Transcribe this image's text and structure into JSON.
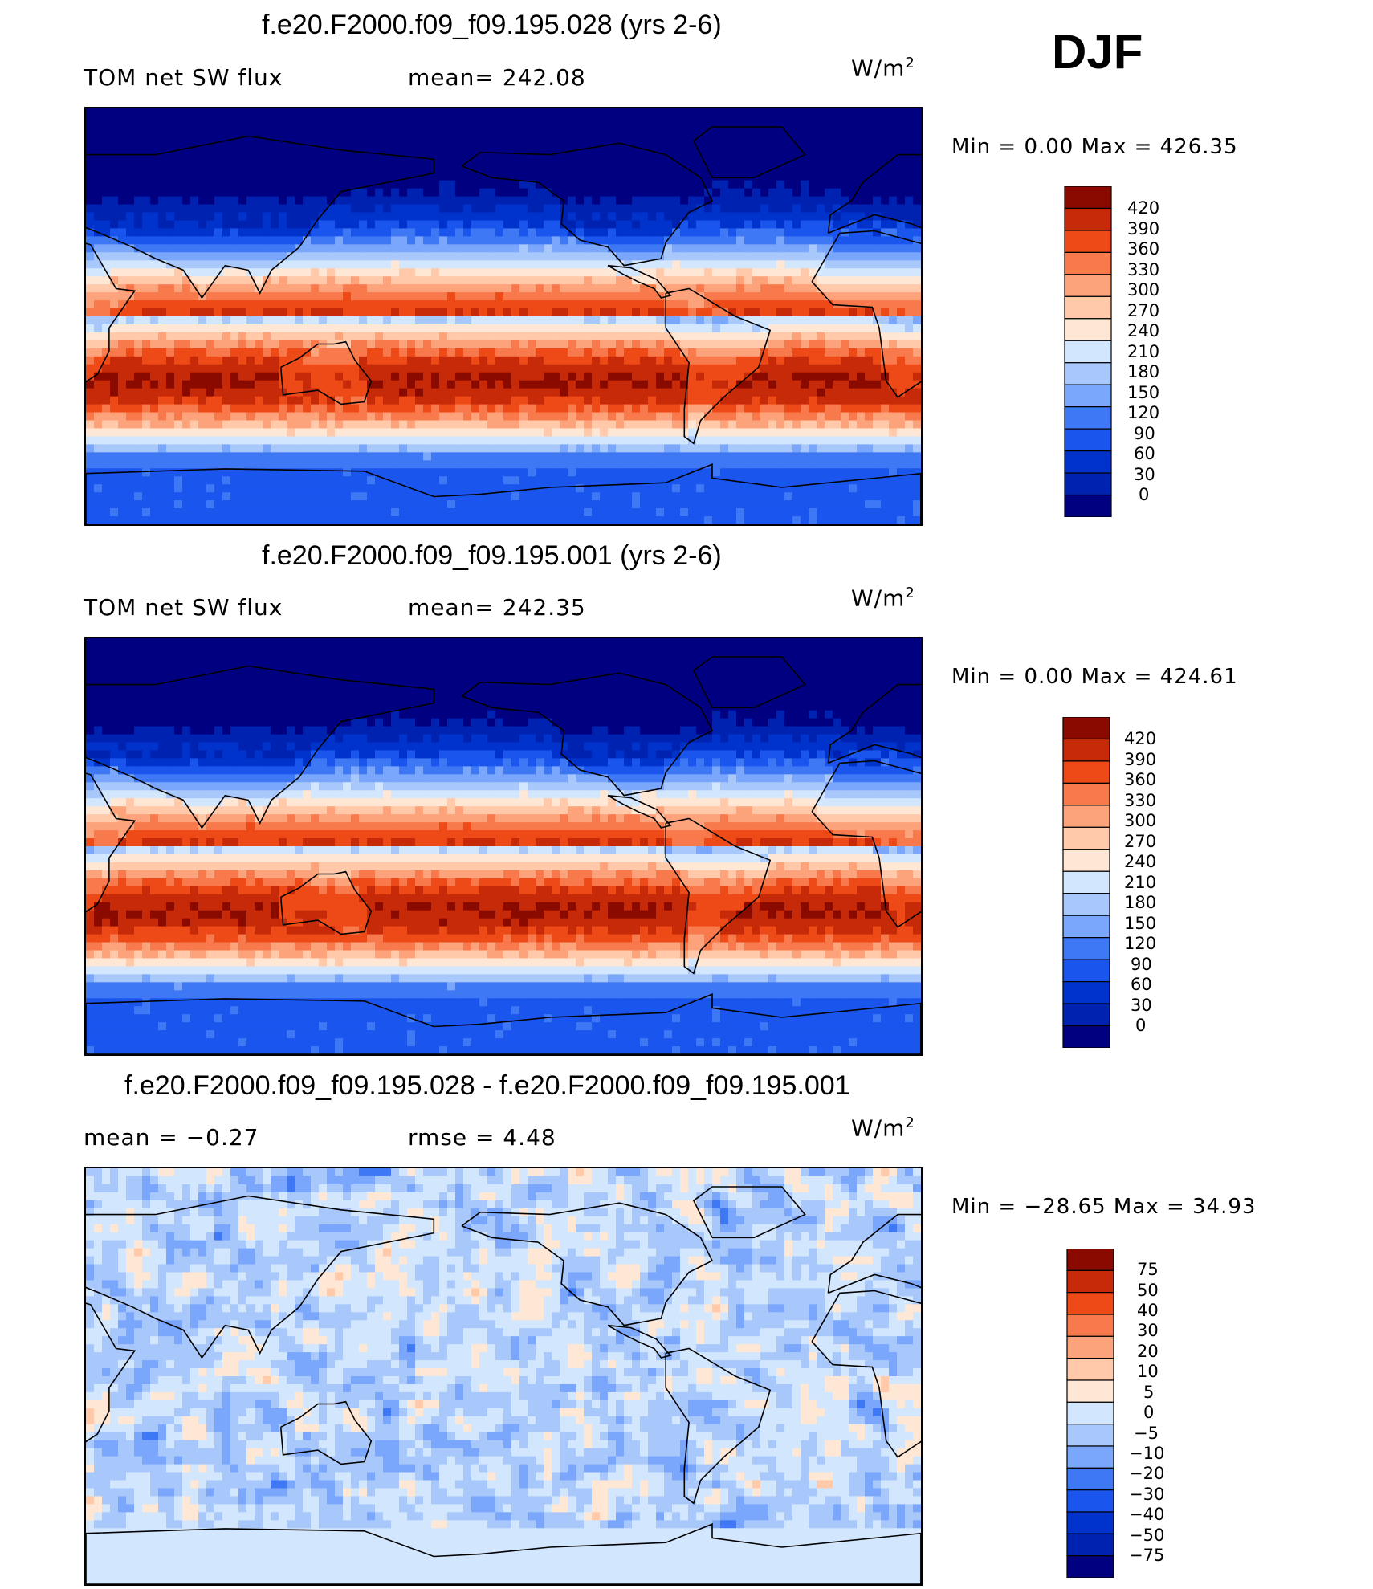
{
  "season_label": "DJF",
  "colors": {
    "abs_scale": [
      "#000080",
      "#0022b0",
      "#0033cc",
      "#1a55ee",
      "#3f78f4",
      "#7aa6fb",
      "#a8c8fc",
      "#d2e6fd",
      "#ffe7d5",
      "#ffc9aa",
      "#fca37c",
      "#f87a4c",
      "#ee4a18",
      "#c72a08",
      "#8a0a00"
    ],
    "diff_scale": [
      "#000080",
      "#0022b0",
      "#0033cc",
      "#1a55ee",
      "#3f78f4",
      "#7aa6fb",
      "#a8c8fc",
      "#d2e6fd",
      "#ffe7d5",
      "#ffc9aa",
      "#fca37c",
      "#f87a4c",
      "#ee4a18",
      "#c72a08",
      "#8a0a00"
    ]
  },
  "chart_data": [
    {
      "type": "heatmap",
      "title": "f.e20.F2000.f09_f09.195.028 (yrs 2-6)",
      "left_label": "TOM net SW flux",
      "stat_label": "mean= 242.08",
      "units_base": "W/m",
      "units_exp": "2",
      "minmax": "Min =     0.00 Max  =  426.35",
      "colorbar_levels": [
        "420",
        "390",
        "360",
        "330",
        "300",
        "270",
        "240",
        "210",
        "180",
        "150",
        "120",
        "90",
        "60",
        "30",
        "0"
      ],
      "lon_range": [
        30,
        390
      ],
      "lat_range": [
        -90,
        90
      ]
    },
    {
      "type": "heatmap",
      "title": "f.e20.F2000.f09_f09.195.001 (yrs 2-6)",
      "left_label": "TOM net SW flux",
      "stat_label": "mean= 242.35",
      "units_base": "W/m",
      "units_exp": "2",
      "minmax": "Min =     0.00 Max  =  424.61",
      "colorbar_levels": [
        "420",
        "390",
        "360",
        "330",
        "300",
        "270",
        "240",
        "210",
        "180",
        "150",
        "120",
        "90",
        "60",
        "30",
        "0"
      ],
      "lon_range": [
        30,
        390
      ],
      "lat_range": [
        -90,
        90
      ]
    },
    {
      "type": "heatmap",
      "title": "f.e20.F2000.f09_f09.195.028 - f.e20.F2000.f09_f09.195.001",
      "left_label": "mean =    −0.27",
      "stat_label": "rmse =     4.48",
      "units_base": "W/m",
      "units_exp": "2",
      "minmax": "Min = −28.65 Max  =   34.93",
      "colorbar_levels": [
        "75",
        "50",
        "40",
        "30",
        "20",
        "10",
        "5",
        "0",
        "−5",
        "−10",
        "−20",
        "−30",
        "−40",
        "−50",
        "−75"
      ],
      "lon_range": [
        30,
        390
      ],
      "lat_range": [
        -90,
        90
      ]
    }
  ]
}
